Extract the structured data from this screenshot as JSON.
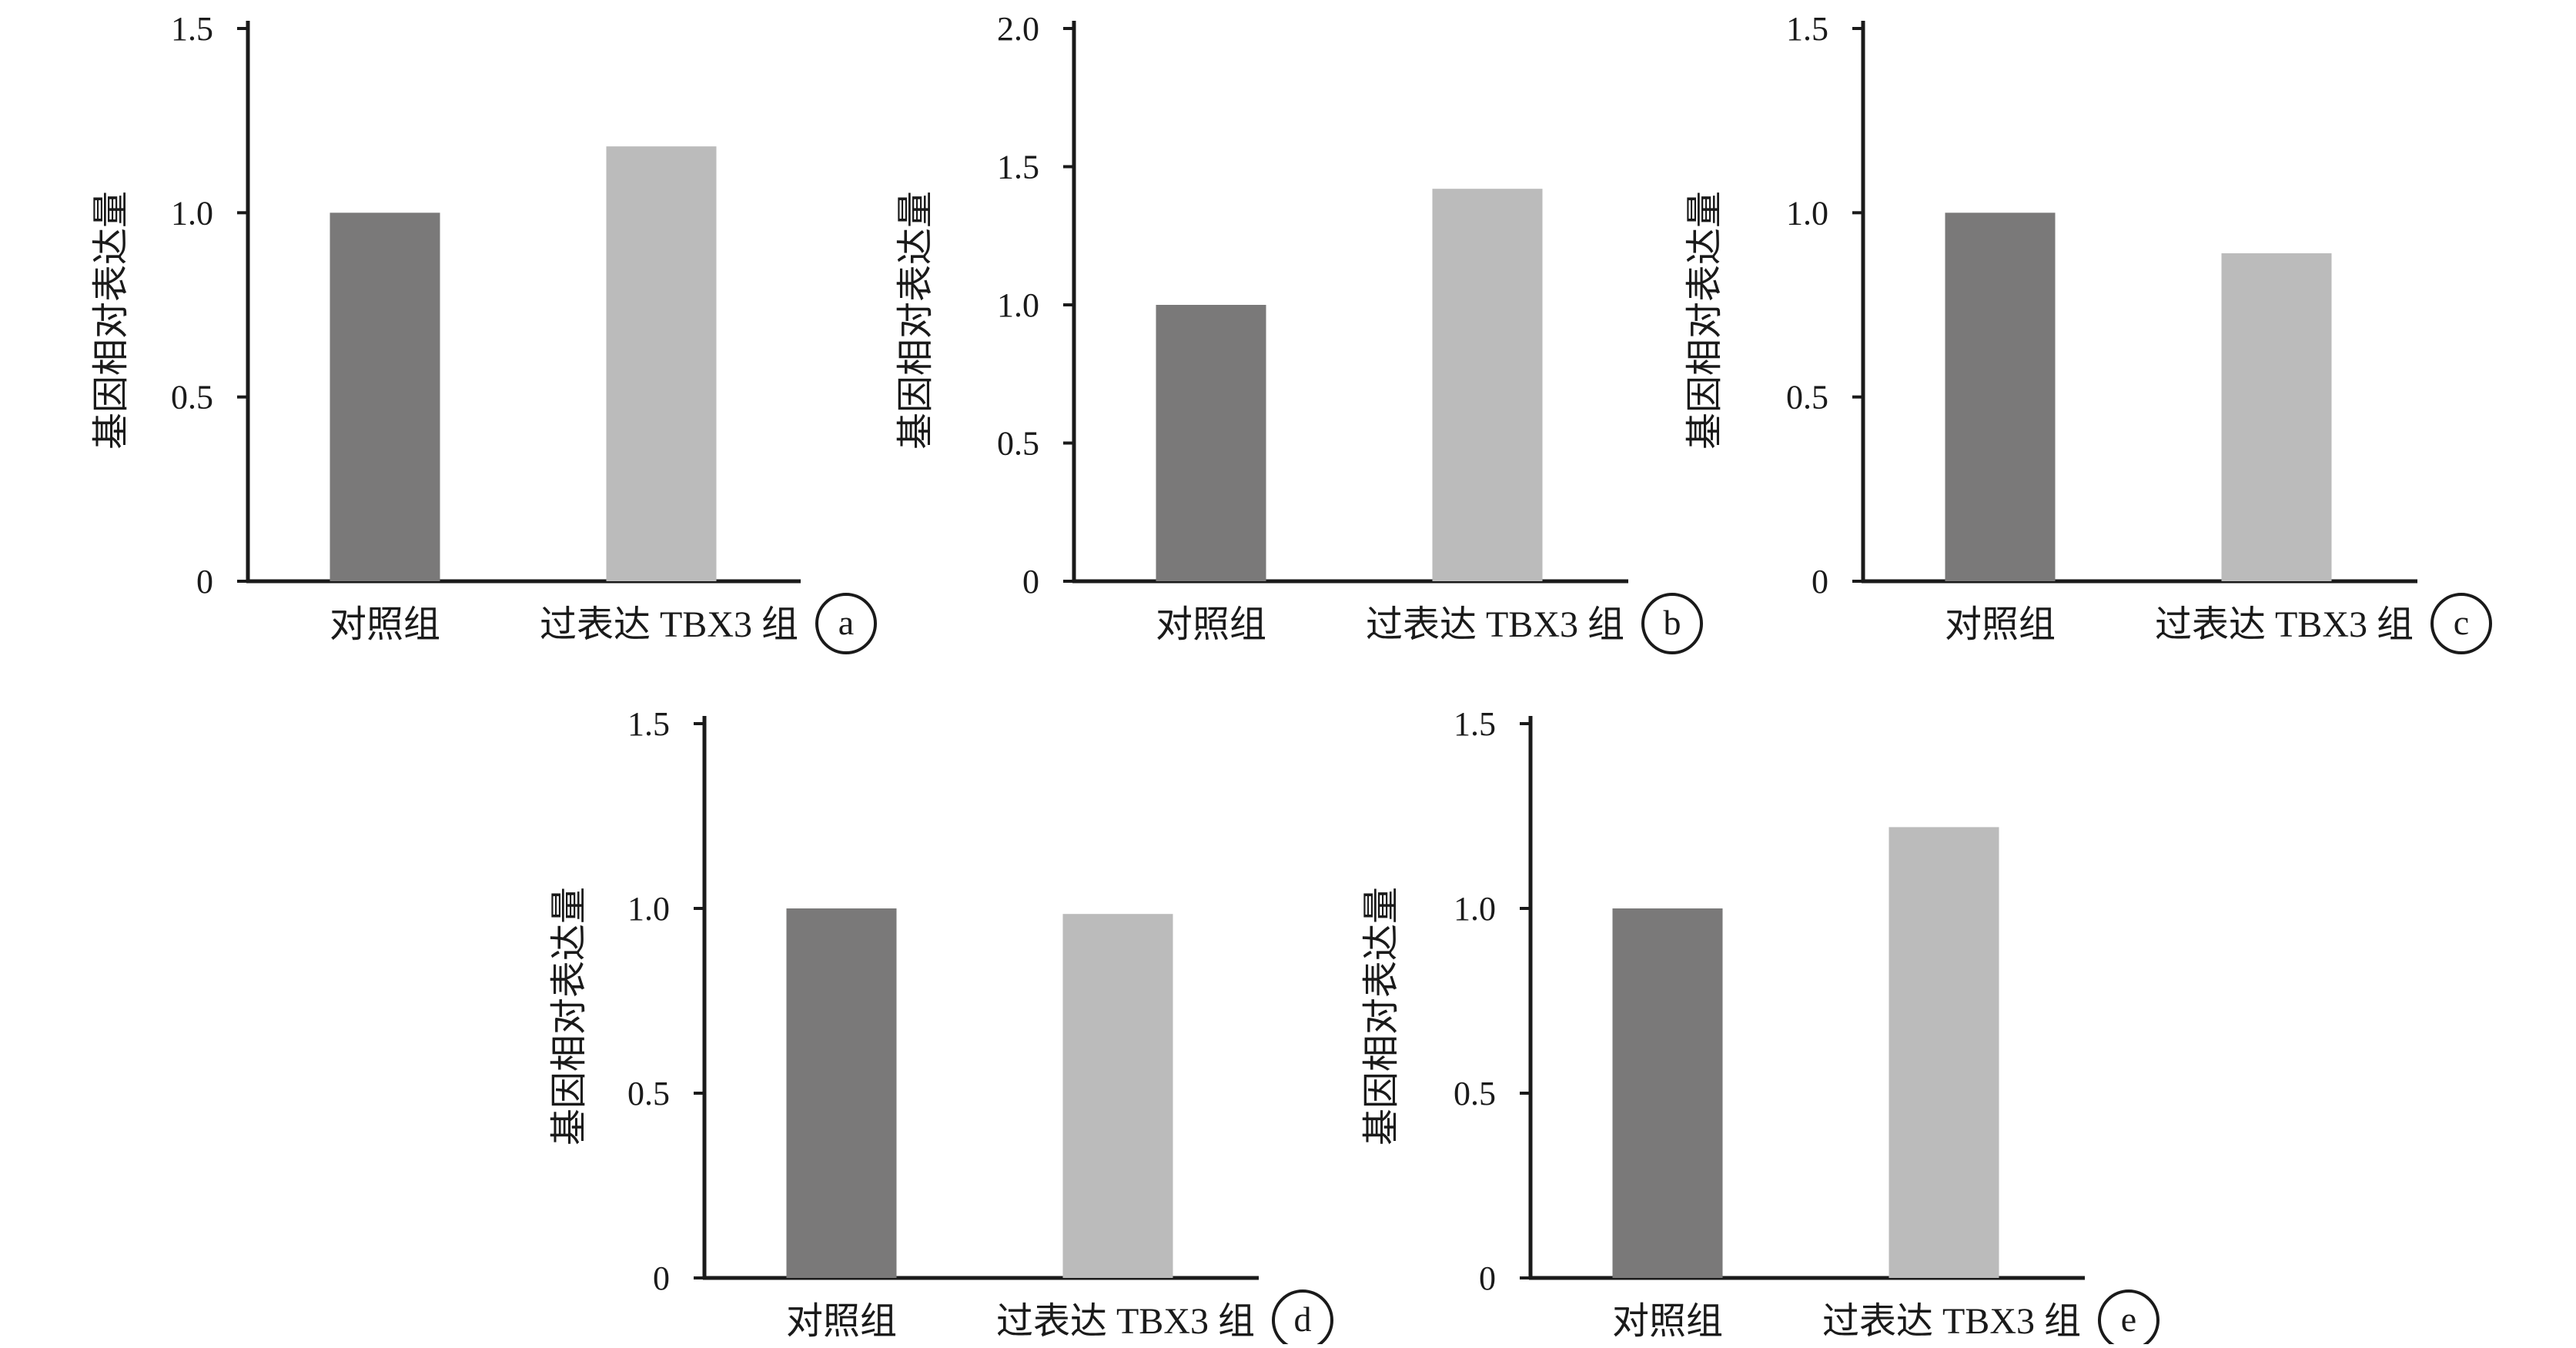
{
  "colors": {
    "control": "#7a7979",
    "treatment": "#bbbbbb",
    "axis": "#1a1a1a"
  },
  "chart_data": [
    {
      "panel": "a",
      "type": "bar",
      "categories": [
        "对照组",
        "过表达 TBX3 组"
      ],
      "values": [
        1.0,
        1.18
      ],
      "ylabel": "基因相对表达量",
      "ylim": [
        0,
        1.5
      ],
      "yticks": [
        "0",
        "0.5",
        "1.0",
        "1.5"
      ],
      "grid": false
    },
    {
      "panel": "b",
      "type": "bar",
      "categories": [
        "对照组",
        "过表达 TBX3 组"
      ],
      "values": [
        1.0,
        1.42
      ],
      "ylabel": "基因相对表达量",
      "ylim": [
        0,
        2.0
      ],
      "yticks": [
        "0",
        "0.5",
        "1.0",
        "1.5",
        "2.0"
      ],
      "grid": false
    },
    {
      "panel": "c",
      "type": "bar",
      "categories": [
        "对照组",
        "过表达 TBX3 组"
      ],
      "values": [
        1.0,
        0.89
      ],
      "ylabel": "基因相对表达量",
      "ylim": [
        0,
        1.5
      ],
      "yticks": [
        "0",
        "0.5",
        "1.0",
        "1.5"
      ],
      "grid": false
    },
    {
      "panel": "d",
      "type": "bar",
      "categories": [
        "对照组",
        "过表达 TBX3 组"
      ],
      "values": [
        1.0,
        0.985
      ],
      "ylabel": "基因相对表达量",
      "ylim": [
        0,
        1.5
      ],
      "yticks": [
        "0",
        "0.5",
        "1.0",
        "1.5"
      ],
      "grid": false
    },
    {
      "panel": "e",
      "type": "bar",
      "categories": [
        "对照组",
        "过表达 TBX3 组"
      ],
      "values": [
        1.0,
        1.22
      ],
      "ylabel": "基因相对表达量",
      "ylim": [
        0,
        1.5
      ],
      "yticks": [
        "0",
        "0.5",
        "1.0",
        "1.5"
      ],
      "grid": false
    }
  ]
}
